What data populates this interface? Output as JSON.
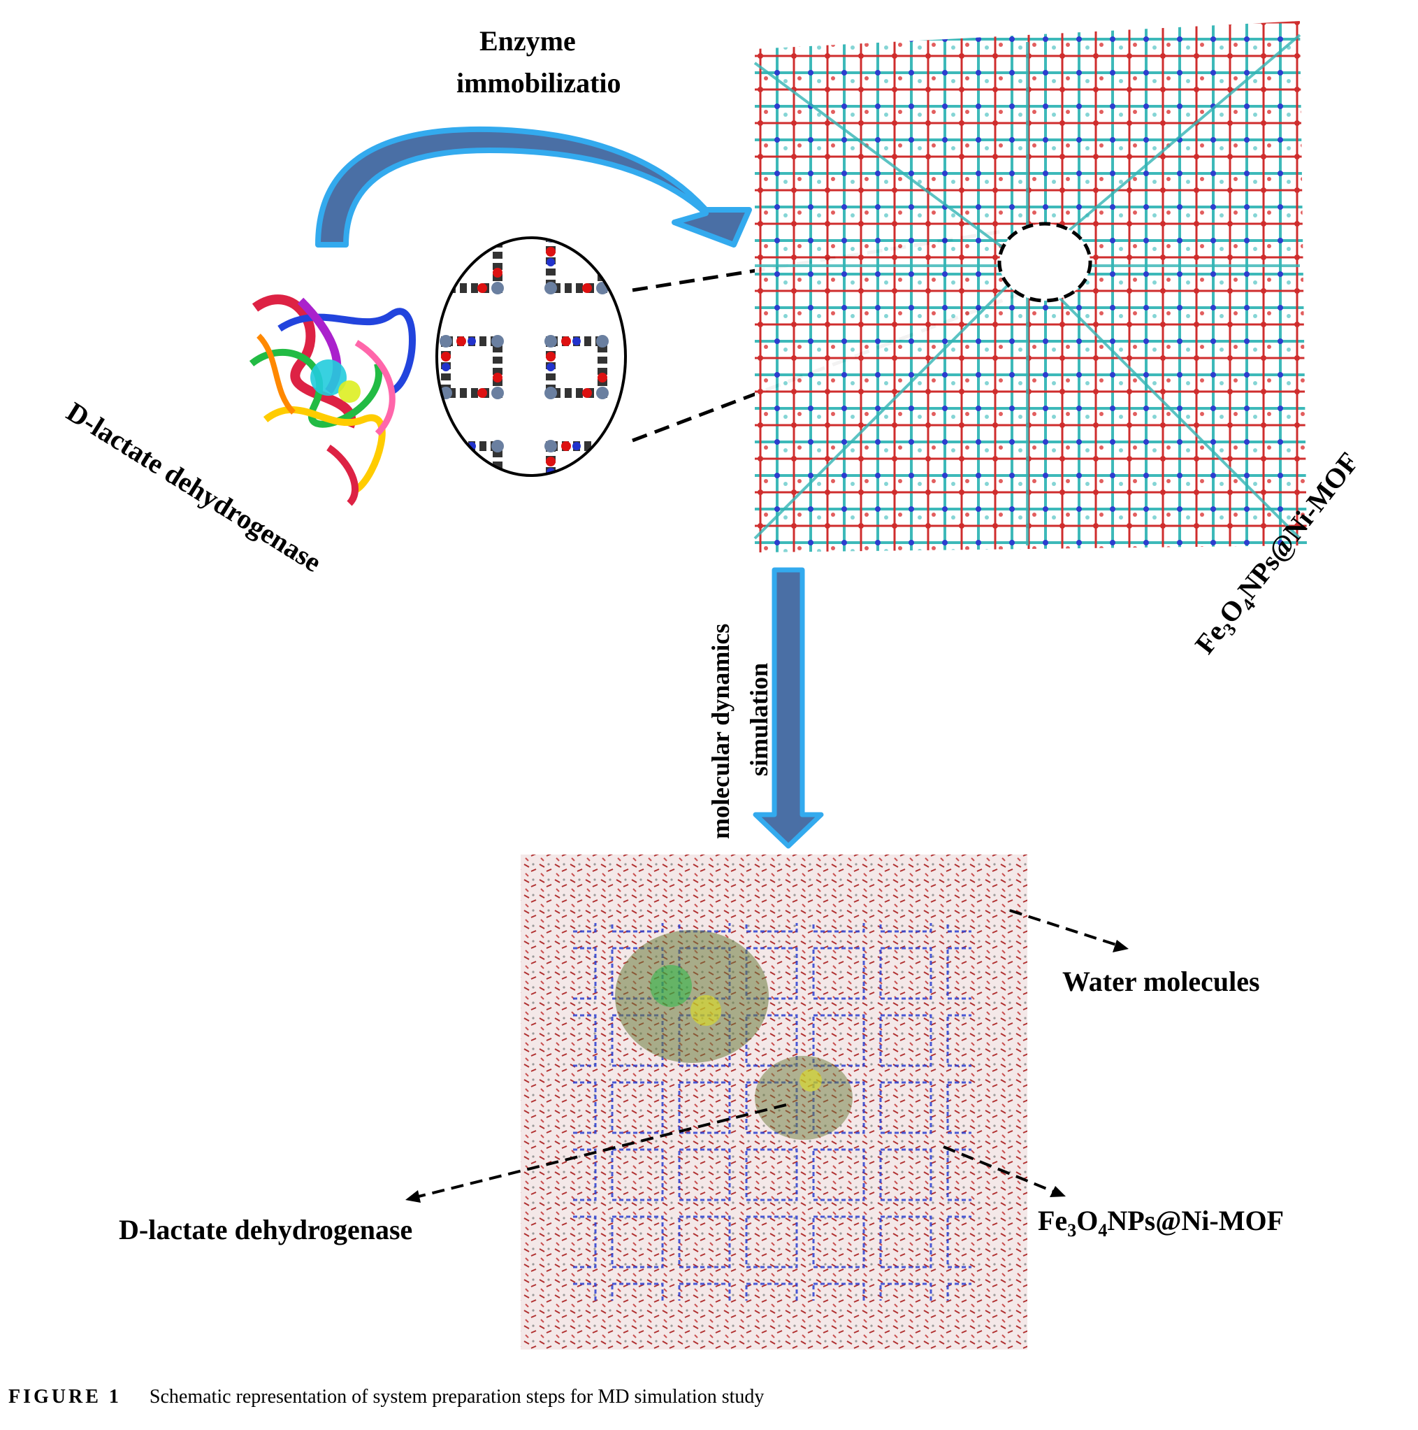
{
  "labels": {
    "enzyme_immobilization_line1": "Enzyme",
    "enzyme_immobilization_line2": "immobilizatio",
    "enzyme_name_rotated": "D-lactate dehydrogenase",
    "mof_name_rotated_prefix": "Fe",
    "mof_name_rotated_sub1": "3",
    "mof_name_rotated_mid": "O",
    "mof_name_rotated_sub2": "4",
    "mof_name_rotated_suffix": "NPs@Ni-MOF",
    "md_line1": "molecular dynamics",
    "md_line2": "simulation",
    "water": "Water molecules",
    "mof_name_bottom_prefix": "Fe",
    "mof_name_bottom_sub1": "3",
    "mof_name_bottom_mid": "O",
    "mof_name_bottom_sub2": "4",
    "mof_name_bottom_suffix": "NPs@Ni-MOF",
    "enzyme_name_bottom": "D-lactate dehydrogenase"
  },
  "caption": {
    "figure_label": "FIGURE 1",
    "text": "Schematic representation of system preparation steps for MD simulation study"
  },
  "colors": {
    "arrow_light": "#33aaee",
    "arrow_dark": "#4a6fa5",
    "oxygen": "#cc2222",
    "carbon_cyan": "#33b5b5",
    "nitrogen": "#2233cc",
    "water_red": "#b03030",
    "framework_blue": "#2b3fd0"
  }
}
